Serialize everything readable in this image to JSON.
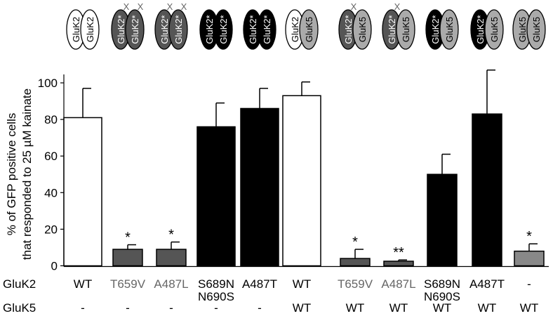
{
  "chart_data": {
    "type": "bar",
    "ylabel_line1": "% of GFP positive cells",
    "ylabel_line2": "that responded to 25 µM kainate",
    "ylim": [
      0,
      100
    ],
    "yticks": [
      "0",
      "20",
      "40",
      "60",
      "80",
      "100"
    ],
    "row_labels": {
      "gluk2": "GluK2",
      "gluk5": "GluK5"
    },
    "bars": [
      {
        "gluk2": [
          "WT"
        ],
        "gluk5": "-",
        "value": 81,
        "error": 16,
        "sig": "",
        "fill": "#ffffff",
        "text_color": "#000000",
        "subunits": [
          {
            "label": "GluK2",
            "kind": "wt"
          },
          {
            "label": "GluK2",
            "kind": "wt"
          }
        ]
      },
      {
        "gluk2": [
          "T659V"
        ],
        "gluk5": "-",
        "value": 9,
        "error": 2.5,
        "sig": "*",
        "fill": "#555555",
        "text_color": "#666666",
        "subunits": [
          {
            "label": "GluK2*",
            "kind": "dead"
          },
          {
            "label": "GluK2*",
            "kind": "dead"
          }
        ]
      },
      {
        "gluk2": [
          "A487L"
        ],
        "gluk5": "-",
        "value": 9,
        "error": 4,
        "sig": "*",
        "fill": "#555555",
        "text_color": "#666666",
        "subunits": [
          {
            "label": "GluK2*",
            "kind": "dead"
          },
          {
            "label": "GluK2*",
            "kind": "dead"
          }
        ]
      },
      {
        "gluk2": [
          "S689N",
          "N690S"
        ],
        "gluk5": "-",
        "value": 76,
        "error": 13,
        "sig": "",
        "fill": "#000000",
        "text_color": "#000000",
        "subunits": [
          {
            "label": "GluK2*",
            "kind": "mut"
          },
          {
            "label": "GluK2*",
            "kind": "mut"
          }
        ]
      },
      {
        "gluk2": [
          "A487T"
        ],
        "gluk5": "-",
        "value": 86,
        "error": 11,
        "sig": "",
        "fill": "#000000",
        "text_color": "#000000",
        "subunits": [
          {
            "label": "GluK2*",
            "kind": "mut"
          },
          {
            "label": "GluK2*",
            "kind": "mut"
          }
        ]
      },
      {
        "gluk2": [
          "WT"
        ],
        "gluk5": "WT",
        "value": 93,
        "error": 7.5,
        "sig": "",
        "fill": "#ffffff",
        "text_color": "#000000",
        "subunits": [
          {
            "label": "GluK2",
            "kind": "wt"
          },
          {
            "label": "GluK5",
            "kind": "k5"
          }
        ]
      },
      {
        "gluk2": [
          "T659V"
        ],
        "gluk5": "WT",
        "value": 4,
        "error": 5,
        "sig": "*",
        "fill": "#555555",
        "text_color": "#666666",
        "subunits": [
          {
            "label": "GluK2*",
            "kind": "dead"
          },
          {
            "label": "GluK5",
            "kind": "k5"
          }
        ]
      },
      {
        "gluk2": [
          "A487L"
        ],
        "gluk5": "WT",
        "value": 2.5,
        "error": 0.7,
        "sig": "**",
        "fill": "#555555",
        "text_color": "#666666",
        "subunits": [
          {
            "label": "GluK2*",
            "kind": "dead"
          },
          {
            "label": "GluK5",
            "kind": "k5"
          }
        ]
      },
      {
        "gluk2": [
          "S689N",
          "N690S"
        ],
        "gluk5": "WT",
        "value": 50,
        "error": 11,
        "sig": "",
        "fill": "#000000",
        "text_color": "#000000",
        "subunits": [
          {
            "label": "GluK2*",
            "kind": "mut"
          },
          {
            "label": "GluK5",
            "kind": "k5"
          }
        ]
      },
      {
        "gluk2": [
          "A487T"
        ],
        "gluk5": "WT",
        "value": 83,
        "error": 24,
        "sig": "",
        "fill": "#000000",
        "text_color": "#000000",
        "subunits": [
          {
            "label": "GluK2*",
            "kind": "mut"
          },
          {
            "label": "GluK5",
            "kind": "k5"
          }
        ]
      },
      {
        "gluk2": [
          "-"
        ],
        "gluk5": "WT",
        "value": 8,
        "error": 4,
        "sig": "*",
        "fill": "#888888",
        "text_color": "#000000",
        "subunits": [
          {
            "label": "GluK5",
            "kind": "k5"
          },
          {
            "label": "GluK5",
            "kind": "k5"
          }
        ]
      }
    ],
    "subunit_colors": {
      "wt": "#ffffff",
      "dead": "#555555",
      "mut": "#000000",
      "k5": "#aaaaaa"
    },
    "dead_marker": "X",
    "grid": false,
    "legend": "none"
  }
}
